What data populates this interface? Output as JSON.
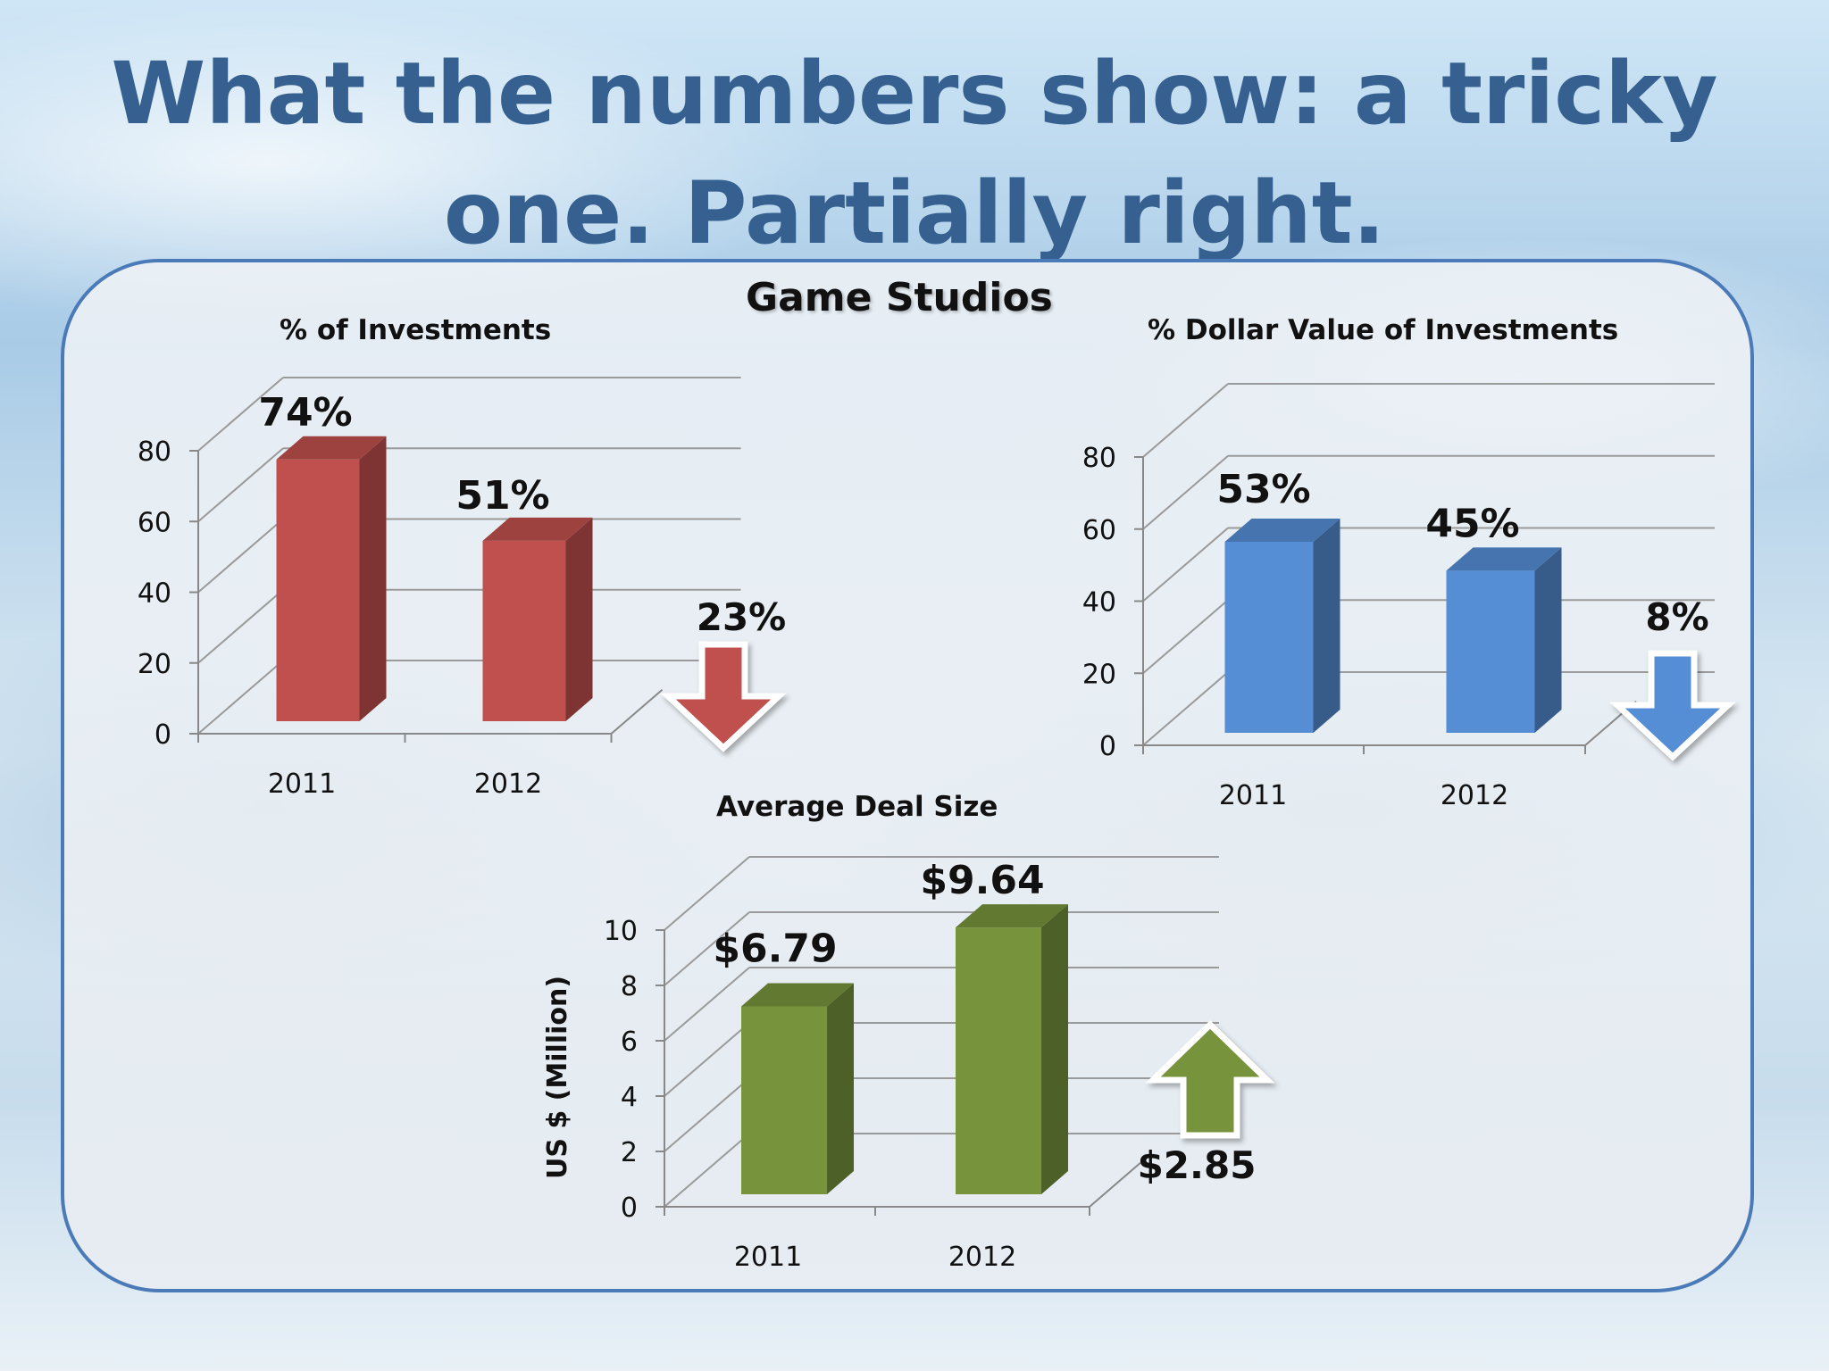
{
  "slide": {
    "title": "What the numbers show: a tricky one. Partially right.",
    "group_heading": "Game Studios"
  },
  "colors": {
    "red_bar": "#c0504d",
    "blue_bar": "#558ed5",
    "green_bar": "#77933c",
    "title": "#35608f",
    "panel_border": "#4a7ab8"
  },
  "chart_data": [
    {
      "type": "bar",
      "title": "% of Investments",
      "categories": [
        "2011",
        "2012"
      ],
      "values": [
        74,
        51
      ],
      "data_labels": [
        "74%",
        "51%"
      ],
      "ylim": [
        0,
        80
      ],
      "yticks": [
        0,
        20,
        40,
        60,
        80
      ],
      "grid": true,
      "change": {
        "direction": "down",
        "label": "23%"
      }
    },
    {
      "type": "bar",
      "title": "% Dollar Value of Investments",
      "categories": [
        "2011",
        "2012"
      ],
      "values": [
        53,
        45
      ],
      "data_labels": [
        "53%",
        "45%"
      ],
      "ylim": [
        0,
        80
      ],
      "yticks": [
        0,
        20,
        40,
        60,
        80
      ],
      "grid": true,
      "change": {
        "direction": "down",
        "label": "8%"
      }
    },
    {
      "type": "bar",
      "title": "Average Deal Size",
      "ylabel": "US $ (Million)",
      "categories": [
        "2011",
        "2012"
      ],
      "values": [
        6.79,
        9.64
      ],
      "data_labels": [
        "$6.79",
        "$9.64"
      ],
      "ylim": [
        0,
        10
      ],
      "yticks": [
        0,
        2,
        4,
        6,
        8,
        10
      ],
      "grid": true,
      "change": {
        "direction": "up",
        "label": "$2.85"
      }
    }
  ]
}
